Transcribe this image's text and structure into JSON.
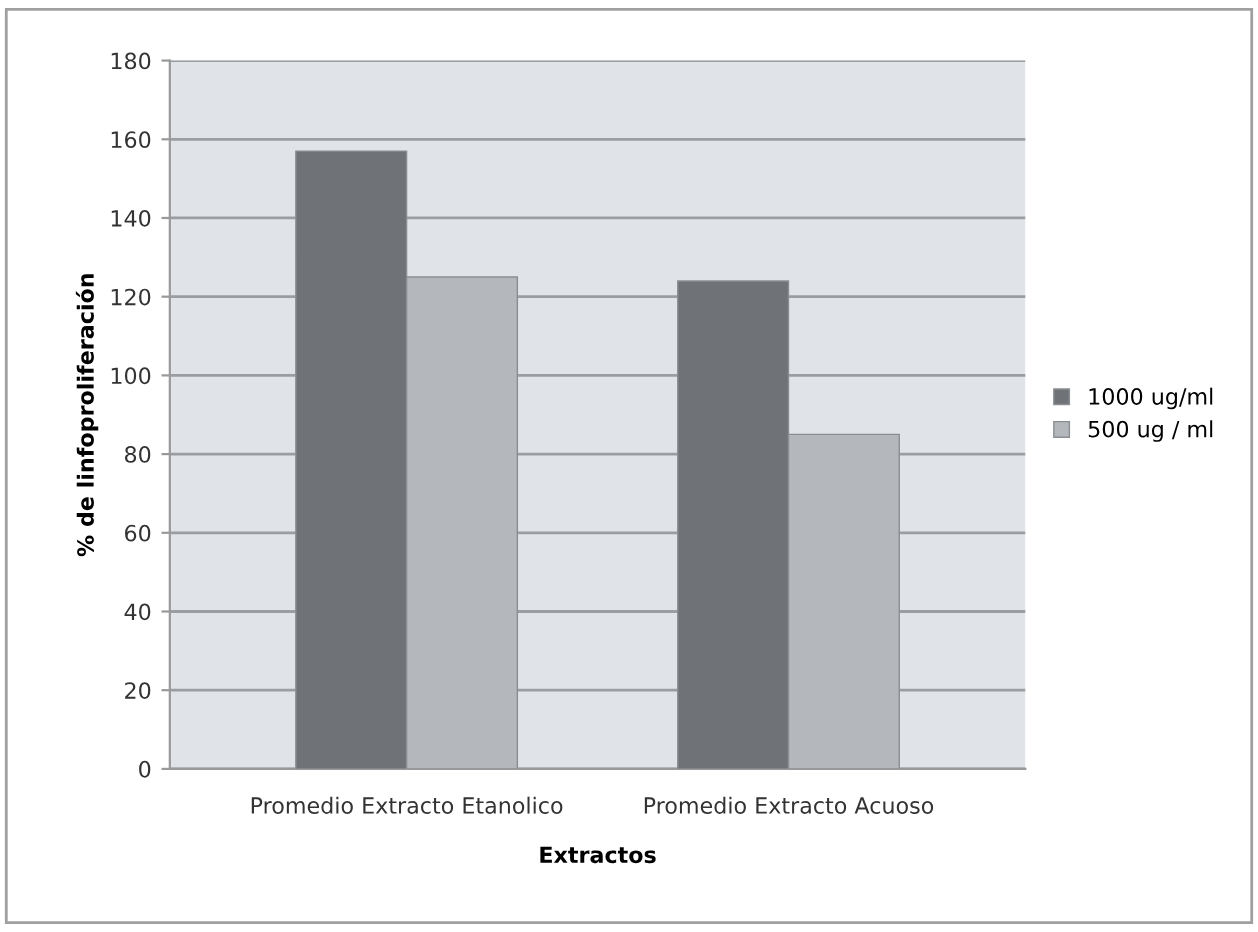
{
  "chart_data": {
    "type": "bar",
    "xlabel": "Extractos",
    "ylabel": "% de linfoproliferación",
    "categories": [
      "Promedio Extracto Etanolico",
      "Promedio Extracto Acuoso"
    ],
    "series": [
      {
        "name": "1000 ug/ml",
        "color": "#6f7377",
        "values": [
          157,
          124
        ]
      },
      {
        "name": "500 ug / ml",
        "color": "#b4b8bc",
        "values": [
          125,
          85
        ]
      }
    ],
    "ylim": [
      0,
      180
    ],
    "yticks": [
      0,
      20,
      40,
      60,
      80,
      100,
      120,
      140,
      160,
      180
    ],
    "grid": "y",
    "legend": "right"
  }
}
